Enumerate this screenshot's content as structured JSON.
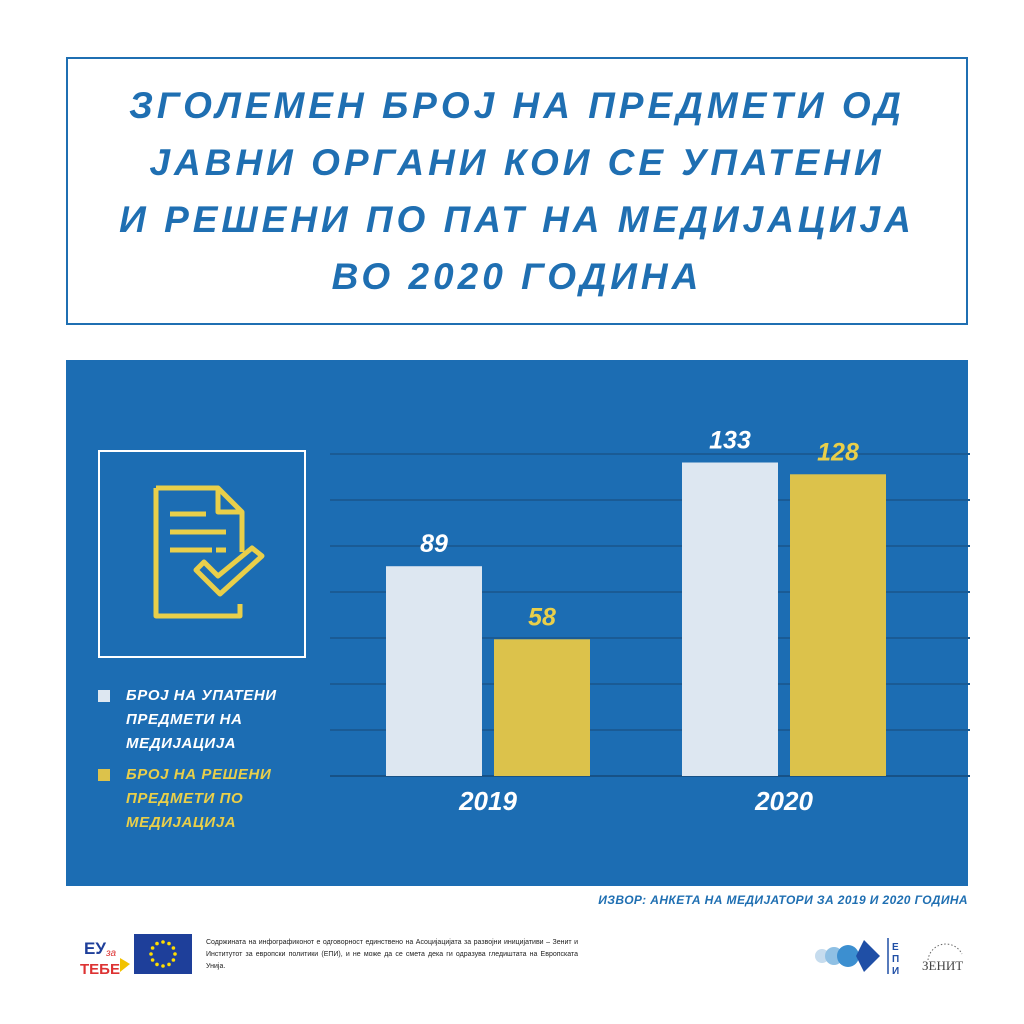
{
  "title_lines": [
    "ЗГОЛЕМЕН БРОЈ НА ПРЕДМЕТИ ОД",
    "ЈАВНИ ОРГАНИ КОИ СЕ УПАТЕНИ",
    "И РЕШЕНИ ПО ПАТ НА МЕДИЈАЦИЈА",
    "ВО 2020 ГОДИНА"
  ],
  "colors": {
    "brand_blue": "#1f6fb2",
    "panel_blue": "#1c6db3",
    "bar_light": "#dde7f1",
    "bar_yellow": "#dcc24b",
    "label_yellow": "#e9cf4a"
  },
  "icon": "document-check-icon",
  "legend": {
    "referred_label": "БРОЈ НА УПАТЕНИ ПРЕДМЕТИ НА МЕДИЈАЦИЈА",
    "resolved_label": "БРОЈ НА РЕШЕНИ ПРЕДМЕТИ ПО МЕДИЈАЦИЈА"
  },
  "chart_data": {
    "type": "bar",
    "categories": [
      "2019",
      "2020"
    ],
    "series": [
      {
        "name": "БРОЈ НА УПАТЕНИ ПРЕДМЕТИ НА МЕДИЈАЦИЈА",
        "values": [
          89,
          133
        ],
        "color": "#dde7f1"
      },
      {
        "name": "БРОЈ НА РЕШЕНИ ПРЕДМЕТИ ПО МЕДИЈАЦИЈА",
        "values": [
          58,
          128
        ],
        "color": "#dcc24b"
      }
    ],
    "ylim": [
      0,
      140
    ],
    "grid": true,
    "data_labels": true,
    "legend_position": "left"
  },
  "source": "ИЗВОР: АНКЕТА НА МЕДИЈАТОРИ ЗА 2019 И 2020 ГОДИНА",
  "footer": {
    "eu_logo_text": "ЕУ за ТЕБЕ",
    "disclaimer": "Содржината на инфографиконот е одговорност единствено на Асоцијацијата за развојни иницијативи – Зенит и Институтот за европски политики (ЕПИ), и не може да се смета дека ги одразува гледиштата на Европската Унија.",
    "epi_logo_text": "ЕПИ",
    "zenith_logo_text": "ЗЕНИТ"
  }
}
